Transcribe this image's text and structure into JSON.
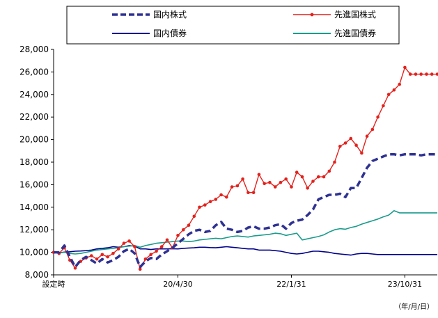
{
  "chart_data": {
    "type": "line",
    "title": "",
    "xlabel": "",
    "ylabel": "",
    "x_unit_note": "（年/月/日）",
    "ylim": [
      8000,
      28000
    ],
    "yticks": [
      "8,000",
      "10,000",
      "12,000",
      "14,000",
      "16,000",
      "18,000",
      "20,000",
      "22,000",
      "24,000",
      "26,000",
      "28,000"
    ],
    "ytick_values": [
      8000,
      10000,
      12000,
      14000,
      16000,
      18000,
      20000,
      22000,
      24000,
      26000,
      28000
    ],
    "xticks": [
      {
        "index": 0,
        "label": "設定時"
      },
      {
        "index": 23,
        "label": "20/4/30"
      },
      {
        "index": 44,
        "label": "22/1/31"
      },
      {
        "index": 65,
        "label": "23/10/31"
      }
    ],
    "n_points": 72,
    "legend_position": "top",
    "grid": false,
    "series": [
      {
        "name": "国内株式",
        "color": "#2e3192",
        "style": "dashed",
        "values": [
          10000,
          10000,
          10600,
          9600,
          8700,
          9300,
          9600,
          9300,
          9000,
          9400,
          9100,
          9300,
          9600,
          10100,
          10300,
          9900,
          8700,
          9200,
          9500,
          9400,
          9800,
          10100,
          10400,
          10800,
          11200,
          11600,
          11900,
          12000,
          11800,
          11900,
          12400,
          12700,
          12100,
          12000,
          11800,
          11900,
          12200,
          12300,
          12100,
          12100,
          12200,
          12400,
          12500,
          12100,
          12600,
          12800,
          12900,
          13300,
          13800,
          14700,
          14900,
          15100,
          15100,
          15200,
          14900,
          15700,
          15700,
          16600,
          17500,
          18100,
          18300,
          18500,
          18700,
          18700,
          18600,
          18700,
          18700,
          18700,
          18600,
          18700,
          18700,
          18700
        ]
      },
      {
        "name": "先進国株式",
        "color": "#e3211c",
        "style": "solid-marker",
        "values": [
          10000,
          9900,
          10400,
          9300,
          8600,
          9200,
          9500,
          9700,
          9400,
          9800,
          9600,
          9900,
          10300,
          10800,
          11000,
          10500,
          8500,
          9400,
          9800,
          10100,
          10500,
          11100,
          10400,
          11500,
          12000,
          12400,
          13200,
          14000,
          14200,
          14500,
          14700,
          15100,
          14900,
          15800,
          15900,
          16500,
          15300,
          15300,
          16900,
          16100,
          16200,
          15800,
          16200,
          16500,
          15800,
          17100,
          16700,
          15700,
          16300,
          16700,
          16700,
          17200,
          18000,
          19400,
          19700,
          20100,
          19500,
          18800,
          20300,
          20900,
          22000,
          23000,
          24000,
          24400,
          24900,
          26400,
          25800,
          25800,
          25800,
          25800,
          25800,
          25800
        ]
      },
      {
        "name": "国内債券",
        "color": "#00008b",
        "style": "solid",
        "values": [
          10000,
          9950,
          10020,
          10050,
          10100,
          10120,
          10150,
          10200,
          10300,
          10350,
          10400,
          10500,
          10450,
          10500,
          10600,
          10550,
          10300,
          10300,
          10250,
          10300,
          10300,
          10300,
          10320,
          10300,
          10350,
          10380,
          10400,
          10450,
          10450,
          10420,
          10400,
          10450,
          10500,
          10450,
          10400,
          10350,
          10300,
          10300,
          10200,
          10200,
          10200,
          10150,
          10100,
          10000,
          9900,
          9850,
          9900,
          10000,
          10100,
          10100,
          10050,
          10000,
          9900,
          9850,
          9800,
          9750,
          9850,
          9900,
          9900,
          9850,
          9800,
          9800,
          9800,
          9800,
          9800,
          9800,
          9800,
          9800,
          9800,
          9800,
          9800,
          9800
        ]
      },
      {
        "name": "先進国債券",
        "color": "#1a9b8c",
        "style": "solid",
        "values": [
          10000,
          9950,
          10000,
          9900,
          9850,
          9900,
          10000,
          10100,
          10200,
          10250,
          10300,
          10350,
          10400,
          10500,
          10550,
          10600,
          10450,
          10600,
          10700,
          10800,
          10850,
          10900,
          10950,
          11000,
          11000,
          10950,
          11000,
          11100,
          11150,
          11200,
          11250,
          11200,
          11300,
          11400,
          11450,
          11400,
          11350,
          11450,
          11500,
          11550,
          11600,
          11700,
          11650,
          11500,
          11600,
          11700,
          11100,
          11200,
          11300,
          11400,
          11550,
          11800,
          12000,
          12100,
          12050,
          12200,
          12300,
          12500,
          12650,
          12800,
          12950,
          13150,
          13300,
          13700,
          13500,
          13500,
          13500,
          13500,
          13500,
          13500,
          13500,
          13500
        ]
      }
    ]
  }
}
